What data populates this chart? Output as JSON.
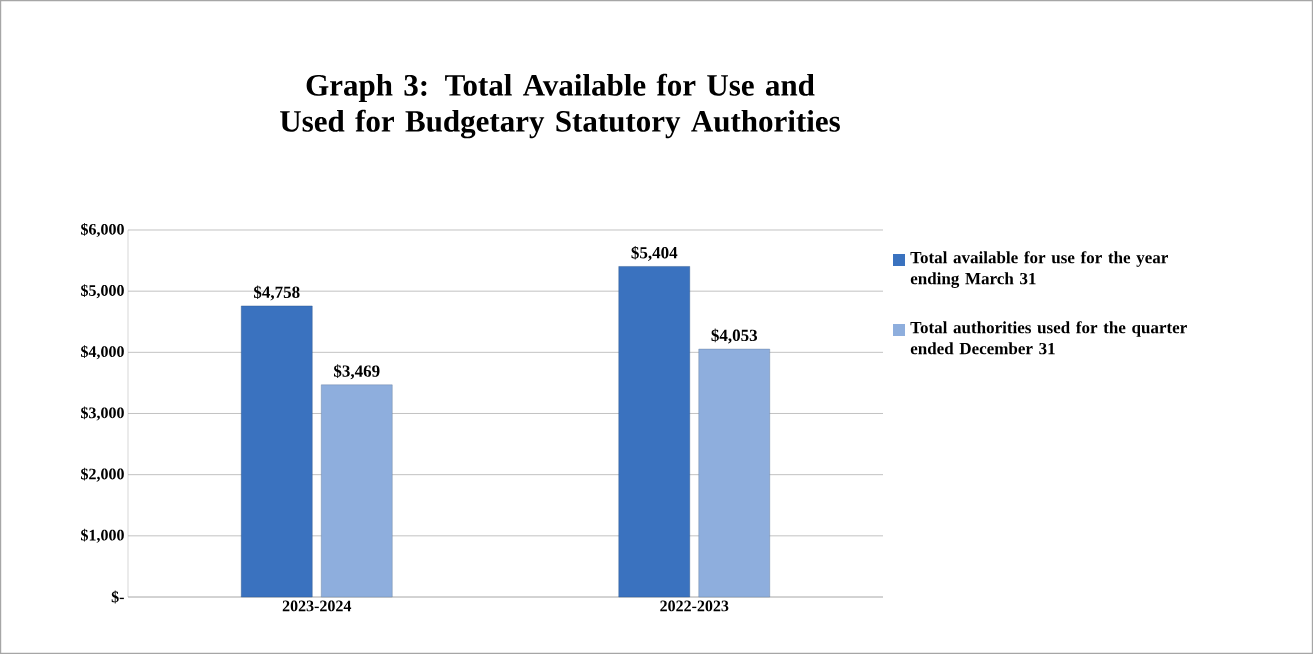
{
  "chart_data": {
    "type": "bar",
    "title": "Graph 3: Total Available for Use and Used for Budgetary Statutory Authorities",
    "categories": [
      "2023-2024",
      "2022-2023"
    ],
    "series": [
      {
        "name": "Total available for use for the year ending March 31",
        "color": "#3a72bf",
        "values": [
          4758,
          5404
        ],
        "value_labels": [
          "$4,758",
          "$5,404"
        ]
      },
      {
        "name": "Total authorities used for the quarter ended December 31",
        "color": "#8eaedd",
        "values": [
          3469,
          4053
        ],
        "value_labels": [
          "$3,469",
          "$4,053"
        ]
      }
    ],
    "ylim": [
      0,
      6000
    ],
    "yticks": [
      {
        "value": 0,
        "label": "$-"
      },
      {
        "value": 1000,
        "label": "$1,000"
      },
      {
        "value": 2000,
        "label": "$2,000"
      },
      {
        "value": 3000,
        "label": "$3,000"
      },
      {
        "value": 4000,
        "label": "$4,000"
      },
      {
        "value": 5000,
        "label": "$5,000"
      },
      {
        "value": 6000,
        "label": "$6,000"
      }
    ],
    "grid": "y",
    "legend": "right"
  }
}
